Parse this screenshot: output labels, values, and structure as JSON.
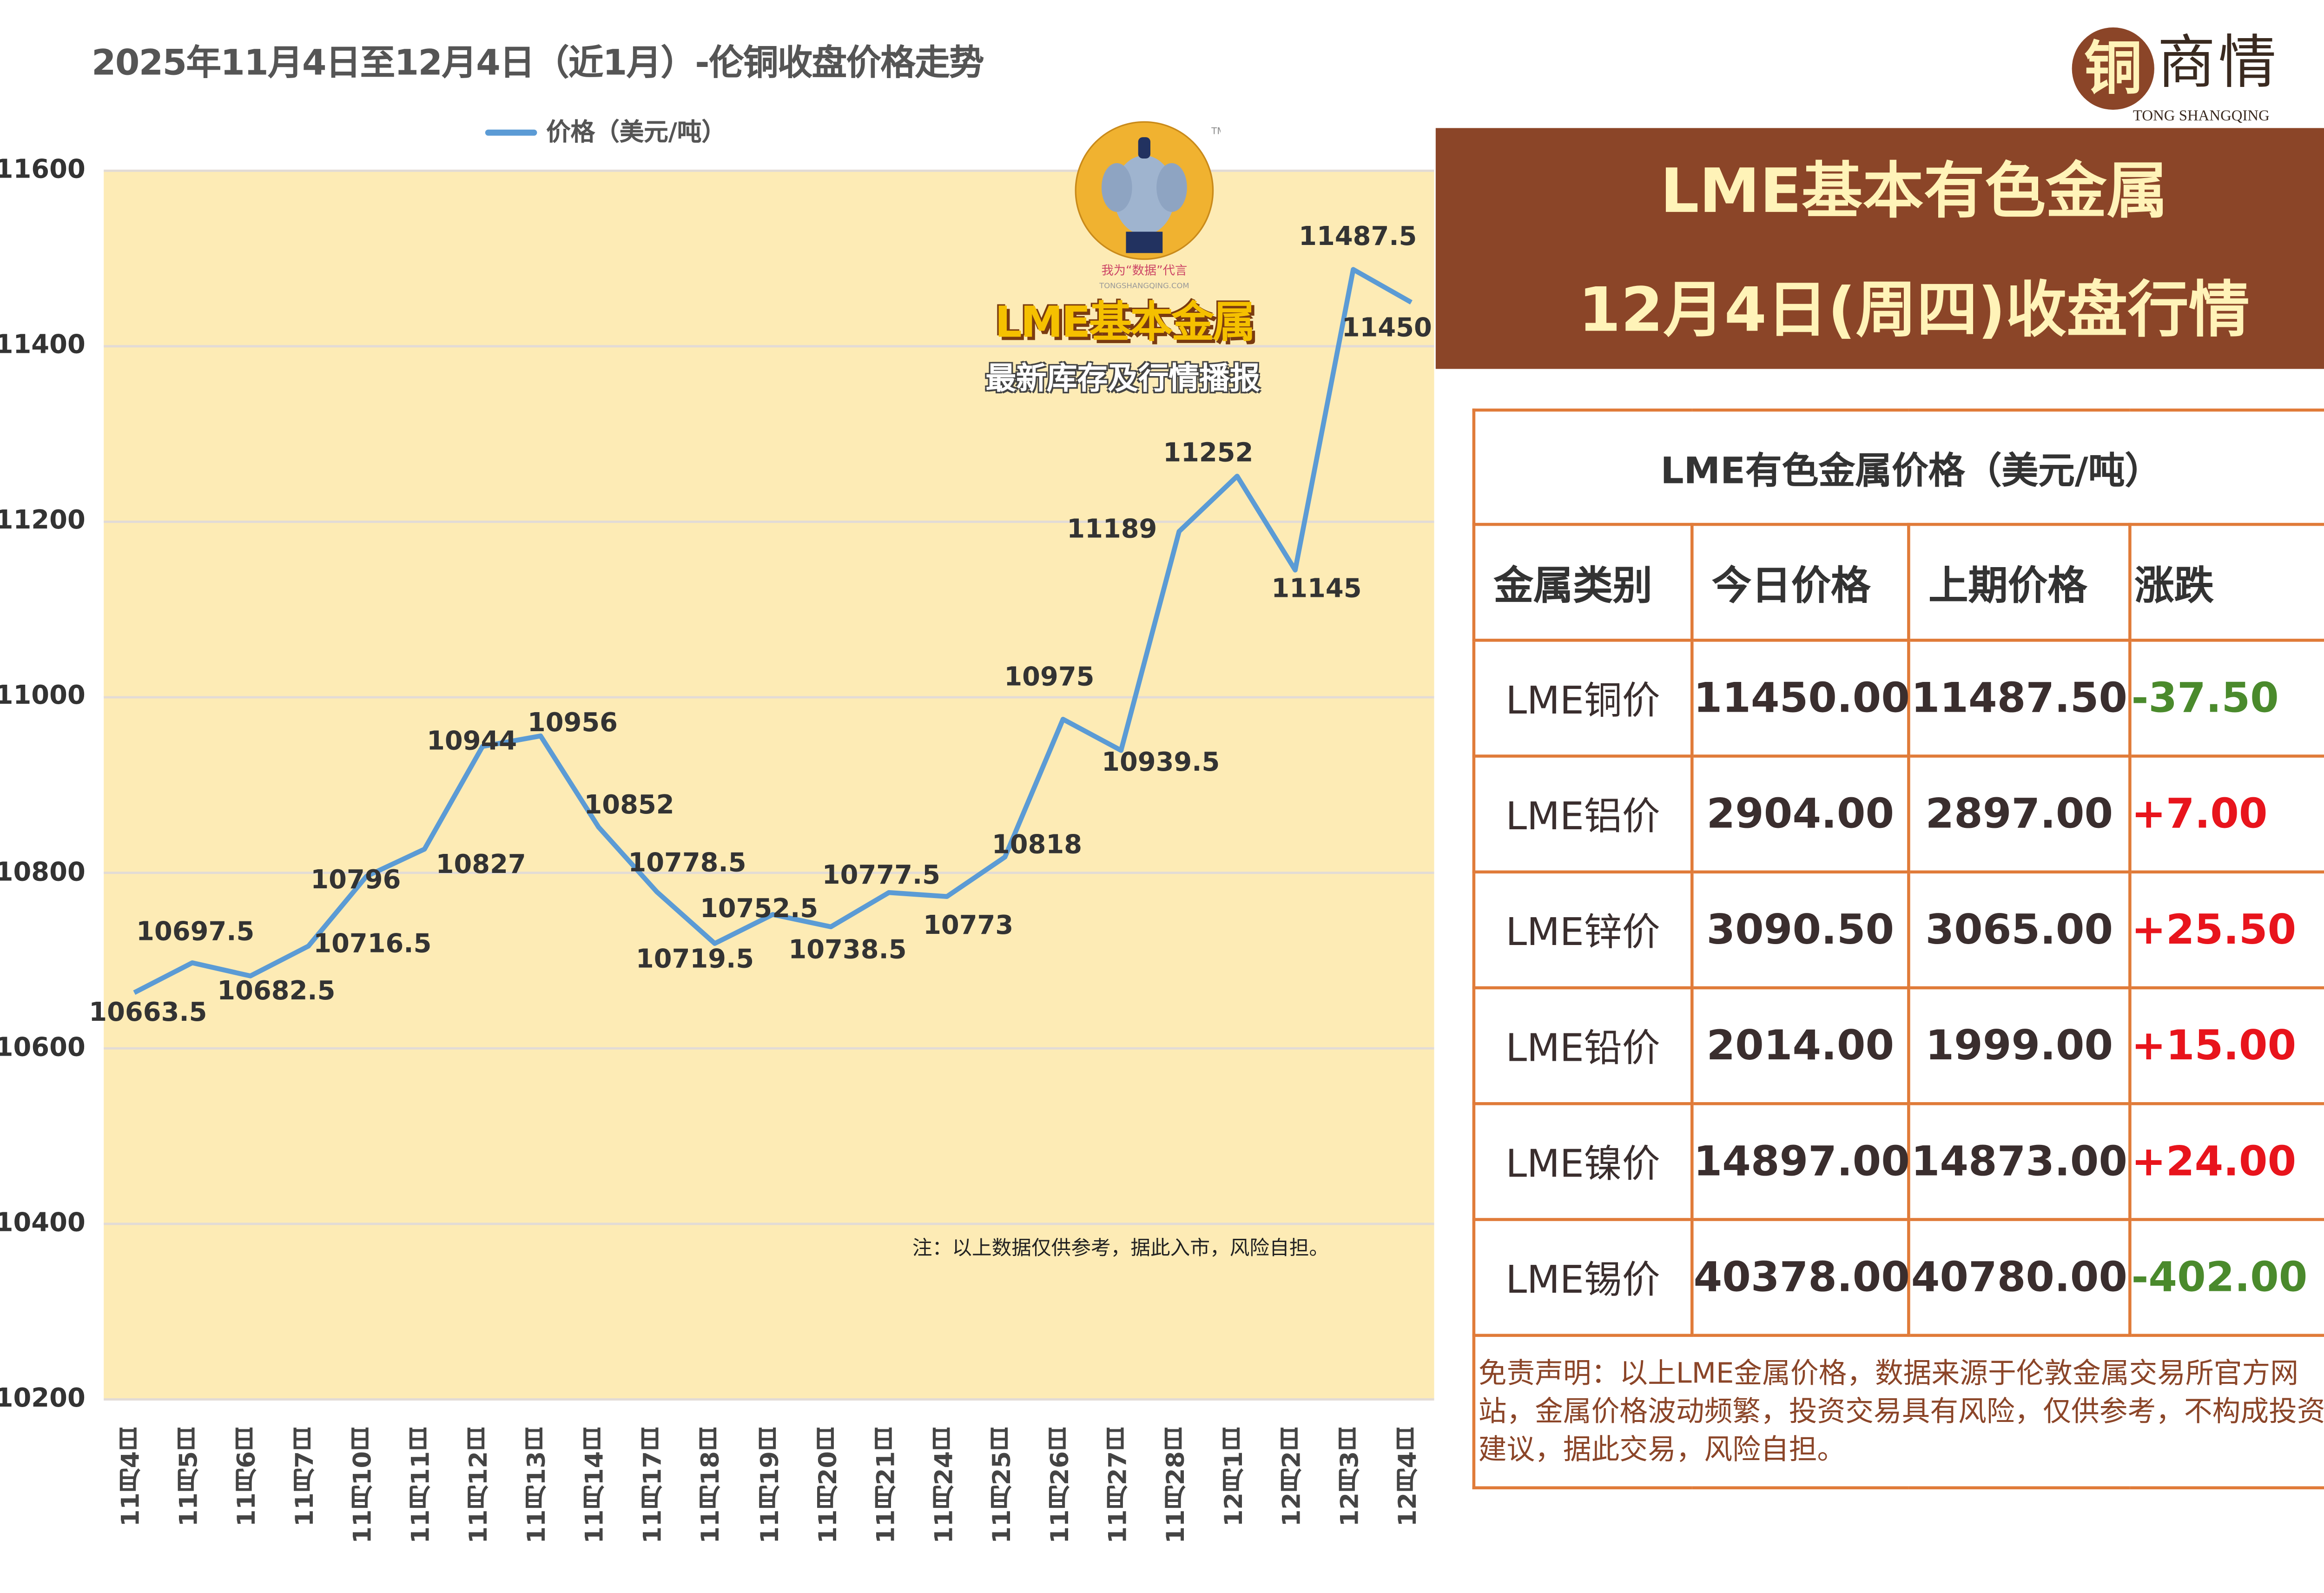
{
  "chart_data": {
    "type": "line",
    "title": "2025年11月4日至12月4日（近1月）-伦铜收盘价格走势",
    "legend": "价格（美元/吨）",
    "legend_position": "top",
    "categories": [
      "11月4日",
      "11月5日",
      "11月6日",
      "11月7日",
      "11月10日",
      "11月11日",
      "11月12日",
      "11月13日",
      "11月14日",
      "11月17日",
      "11月18日",
      "11月19日",
      "11月20日",
      "11月21日",
      "11月24日",
      "11月25日",
      "11月26日",
      "11月27日",
      "11月28日",
      "12月1日",
      "12月2日",
      "12月3日",
      "12月4日"
    ],
    "series": [
      {
        "name": "价格（美元/吨）",
        "color": "#5b9bd5",
        "values": [
          10663.5,
          10697.5,
          10682.5,
          10716.5,
          10796,
          10827,
          10944,
          10956,
          10852,
          10778.5,
          10719.5,
          10752.5,
          10738.5,
          10777.5,
          10773,
          10818,
          10975,
          10939.5,
          11189,
          11252,
          11145,
          11487.5,
          11450
        ]
      }
    ],
    "data_labels": [
      "10663.5",
      "10697.5",
      "10682.5",
      "10716.5",
      "10796",
      "10827",
      "10944",
      "10956",
      "10852",
      "10778.5",
      "10719.5",
      "10752.5",
      "10738.5",
      "10777.5",
      "10773",
      "10818",
      "10975",
      "10939.5",
      "11189",
      "11252",
      "11145",
      "11487.5",
      "11450"
    ],
    "ylim": [
      10200,
      11600
    ],
    "yticks": [
      "10200",
      "10400",
      "10600",
      "10800",
      "11000",
      "11200",
      "11400",
      "11600"
    ],
    "grid": true,
    "plot_background": "#fdebb5",
    "note": "注：以上数据仅供参考，据此入市，风险自担。"
  },
  "watermark": {
    "slogan": "我为“数据”代言",
    "site": "TONGSHANGQING.COM",
    "line1": "LME基本金属",
    "line2": "最新库存及行情播报",
    "tm": "TM"
  },
  "logo": {
    "chars": [
      "铜",
      "商情"
    ],
    "pinyin": "TONG SHANGQING"
  },
  "banner": {
    "line1": "LME基本有色金属",
    "line2": "12月4日(周四)收盘行情",
    "color": "#8b4528"
  },
  "table": {
    "title": "LME有色金属价格（美元/吨）",
    "headers": [
      "金属类别",
      "今日价格",
      "上期价格",
      "涨跌"
    ],
    "rows": [
      {
        "name": "LME铜价",
        "today": "11450.00",
        "prev": "11487.50",
        "change": "-37.50",
        "dir": "down"
      },
      {
        "name": "LME铝价",
        "today": "2904.00",
        "prev": "2897.00",
        "change": "+7.00",
        "dir": "up"
      },
      {
        "name": "LME锌价",
        "today": "3090.50",
        "prev": "3065.00",
        "change": "+25.50",
        "dir": "up"
      },
      {
        "name": "LME铅价",
        "today": "2014.00",
        "prev": "1999.00",
        "change": "+15.00",
        "dir": "up"
      },
      {
        "name": "LME镍价",
        "today": "14897.00",
        "prev": "14873.00",
        "change": "+24.00",
        "dir": "up"
      },
      {
        "name": "LME锡价",
        "today": "40378.00",
        "prev": "40780.00",
        "change": "-402.00",
        "dir": "down"
      }
    ],
    "up_color": "#e8141c",
    "down_color": "#4a8a2c",
    "disclaimer": "免责声明：以上LME金属价格，数据来源于伦敦金属交易所官方网站，金属价格波动频繁，投资交易具有风险，仅供参考，不构成投资建议，据此交易，风险自担。"
  }
}
